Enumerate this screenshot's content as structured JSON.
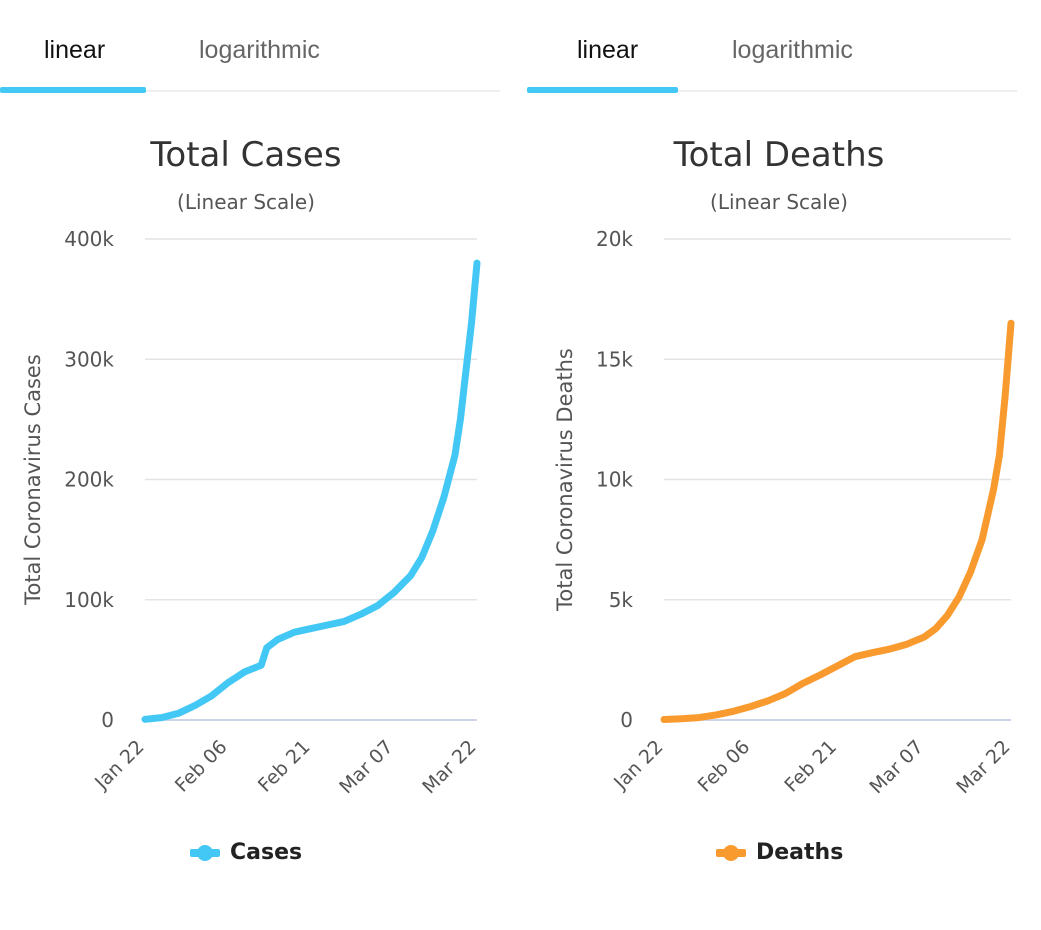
{
  "colors": {
    "cases": "#43c8f5",
    "deaths": "#f99a2f",
    "grid": "#e4e4e4",
    "axis": "#cfd5e8",
    "text": "#555555",
    "title": "#333333"
  },
  "left": {
    "tabs": [
      {
        "label": "linear",
        "active": true
      },
      {
        "label": "logarithmic",
        "active": false
      }
    ]
  },
  "right": {
    "tabs": [
      {
        "label": "linear",
        "active": true
      },
      {
        "label": "logarithmic",
        "active": false
      }
    ]
  },
  "chart_data": [
    {
      "type": "line",
      "title": "Total Cases",
      "subtitle": "(Linear Scale)",
      "ylabel": "Total Coronavirus Cases",
      "xlabel": "",
      "ylim": [
        0,
        400000
      ],
      "yticks": [
        "0",
        "100k",
        "200k",
        "300k",
        "400k"
      ],
      "xticks": [
        "Jan 22",
        "Feb 06",
        "Feb 21",
        "Mar 07",
        "Mar 22"
      ],
      "grid": true,
      "legend_position": "bottom-center",
      "series": [
        {
          "name": "Cases",
          "color_key": "cases",
          "x": [
            "Jan 22",
            "Jan 25",
            "Jan 28",
            "Jan 31",
            "Feb 03",
            "Feb 06",
            "Feb 09",
            "Feb 12",
            "Feb 13",
            "Feb 15",
            "Feb 18",
            "Feb 21",
            "Feb 24",
            "Feb 27",
            "Mar 01",
            "Mar 04",
            "Mar 07",
            "Mar 10",
            "Mar 12",
            "Mar 14",
            "Mar 16",
            "Mar 18",
            "Mar 19",
            "Mar 20",
            "Mar 21",
            "Mar 22"
          ],
          "values": [
            600,
            2000,
            5500,
            12000,
            20000,
            31000,
            40000,
            45500,
            60000,
            67000,
            73000,
            76000,
            79000,
            82000,
            88000,
            95000,
            106000,
            120000,
            135000,
            157000,
            185000,
            220000,
            250000,
            290000,
            330000,
            380000
          ]
        }
      ]
    },
    {
      "type": "line",
      "title": "Total Deaths",
      "subtitle": "(Linear Scale)",
      "ylabel": "Total Coronavirus Deaths",
      "xlabel": "",
      "ylim": [
        0,
        20000
      ],
      "yticks": [
        "0",
        "5k",
        "10k",
        "15k",
        "20k"
      ],
      "xticks": [
        "Jan 22",
        "Feb 06",
        "Feb 21",
        "Mar 07",
        "Mar 22"
      ],
      "grid": true,
      "legend_position": "bottom-center",
      "series": [
        {
          "name": "Deaths",
          "color_key": "deaths",
          "x": [
            "Jan 22",
            "Jan 25",
            "Jan 28",
            "Jan 31",
            "Feb 03",
            "Feb 06",
            "Feb 09",
            "Feb 12",
            "Feb 15",
            "Feb 18",
            "Feb 21",
            "Feb 24",
            "Feb 27",
            "Mar 01",
            "Mar 04",
            "Mar 07",
            "Mar 09",
            "Mar 11",
            "Mar 13",
            "Mar 15",
            "Mar 17",
            "Mar 19",
            "Mar 20",
            "Mar 21",
            "Mar 22"
          ],
          "values": [
            20,
            50,
            100,
            210,
            360,
            560,
            800,
            1100,
            1520,
            1870,
            2250,
            2630,
            2800,
            2950,
            3150,
            3450,
            3800,
            4350,
            5100,
            6150,
            7500,
            9600,
            11000,
            13500,
            16500
          ]
        }
      ]
    }
  ]
}
